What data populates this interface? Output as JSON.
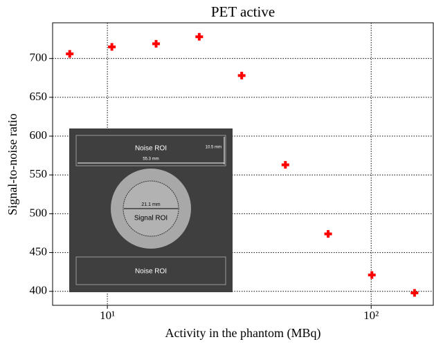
{
  "chart_data": {
    "type": "scatter",
    "title": "PET active",
    "x_label": "Activity in the phantom (MBq)",
    "y_label": "Signal-to-noise ratio",
    "x": [
      7.2,
      10.4,
      15.3,
      22.3,
      32.3,
      47.3,
      68.7,
      100.6,
      146
    ],
    "values": [
      706,
      715,
      719,
      728,
      678,
      563,
      474,
      421,
      398
    ],
    "color": "#ff0000",
    "marker": "plus",
    "xscale": "log",
    "xlim": [
      6.2,
      172
    ],
    "ylim": [
      382,
      746
    ],
    "xticks": [
      {
        "value": 10,
        "label": "10¹"
      },
      {
        "value": 100,
        "label": "10²"
      }
    ],
    "yticks": [
      400,
      450,
      500,
      550,
      600,
      650,
      700
    ],
    "grid": true,
    "inset": {
      "noise_top": "Noise ROI",
      "height": "10.5 mm",
      "width": "55.3 mm",
      "diameter": "21.1 mm",
      "signal": "Signal ROI",
      "noise_bottom": "Noise ROI"
    }
  }
}
